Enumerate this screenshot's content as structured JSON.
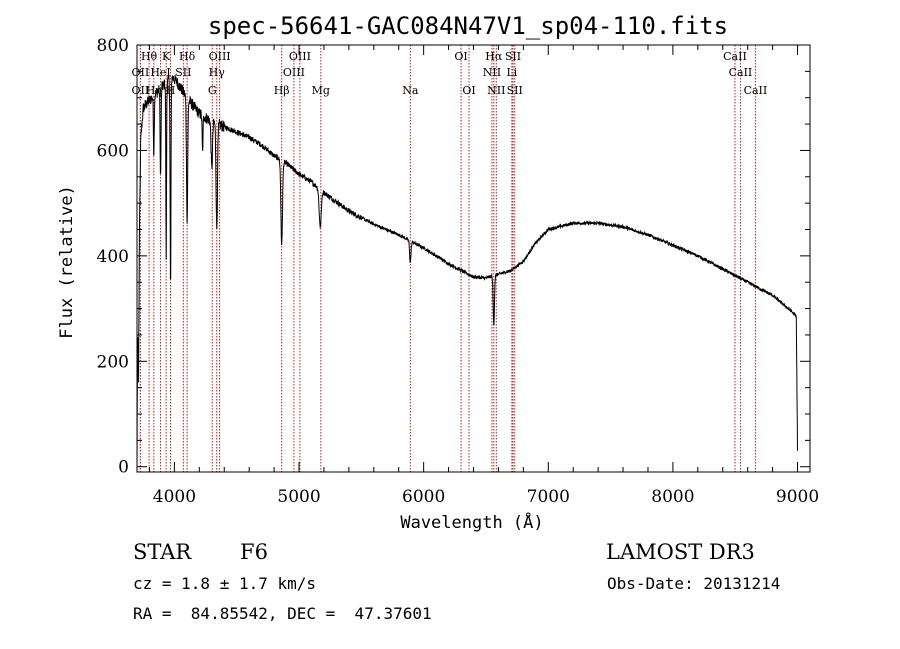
{
  "chart_data": {
    "type": "line",
    "title": "spec-56641-GAC084N47V1_sp04-110.fits",
    "xlabel": "Wavelength (Å)",
    "ylabel": "Flux (relative)",
    "xlim": [
      3700,
      9100
    ],
    "ylim": [
      -10,
      800
    ],
    "x_ticks": [
      4000,
      5000,
      6000,
      7000,
      8000,
      9000
    ],
    "y_ticks": [
      0,
      200,
      400,
      600,
      800
    ],
    "grid": false,
    "line_color": "#000000",
    "marker_color": "#b22222",
    "continuum": [
      [
        3700,
        0
      ],
      [
        3705,
        260
      ],
      [
        3712,
        160
      ],
      [
        3720,
        450
      ],
      [
        3730,
        620
      ],
      [
        3750,
        680
      ],
      [
        3780,
        690
      ],
      [
        3820,
        700
      ],
      [
        3860,
        710
      ],
      [
        3900,
        720
      ],
      [
        3940,
        730
      ],
      [
        3980,
        740
      ],
      [
        4020,
        730
      ],
      [
        4100,
        700
      ],
      [
        4200,
        670
      ],
      [
        4300,
        655
      ],
      [
        4400,
        645
      ],
      [
        4500,
        635
      ],
      [
        4600,
        625
      ],
      [
        4700,
        610
      ],
      [
        4800,
        590
      ],
      [
        4900,
        575
      ],
      [
        5000,
        555
      ],
      [
        5100,
        540
      ],
      [
        5200,
        520
      ],
      [
        5400,
        485
      ],
      [
        5600,
        460
      ],
      [
        5800,
        440
      ],
      [
        6000,
        415
      ],
      [
        6200,
        385
      ],
      [
        6400,
        360
      ],
      [
        6500,
        358
      ],
      [
        6600,
        365
      ],
      [
        6700,
        372
      ],
      [
        6800,
        390
      ],
      [
        6900,
        425
      ],
      [
        7000,
        450
      ],
      [
        7200,
        462
      ],
      [
        7400,
        462
      ],
      [
        7600,
        455
      ],
      [
        7800,
        440
      ],
      [
        8000,
        420
      ],
      [
        8200,
        400
      ],
      [
        8400,
        375
      ],
      [
        8600,
        350
      ],
      [
        8800,
        325
      ],
      [
        8950,
        295
      ],
      [
        8990,
        285
      ],
      [
        9000,
        30
      ]
    ],
    "absorption_features": [
      {
        "center": 3835,
        "depth": 110,
        "width": 5
      },
      {
        "center": 3889,
        "depth": 170,
        "width": 5
      },
      {
        "center": 3934,
        "depth": 330,
        "width": 4
      },
      {
        "center": 3969,
        "depth": 400,
        "width": 5
      },
      {
        "center": 4102,
        "depth": 230,
        "width": 7
      },
      {
        "center": 4226,
        "depth": 70,
        "width": 5
      },
      {
        "center": 4300,
        "depth": 90,
        "width": 8
      },
      {
        "center": 4340,
        "depth": 200,
        "width": 8
      },
      {
        "center": 4861,
        "depth": 160,
        "width": 9
      },
      {
        "center": 5170,
        "depth": 70,
        "width": 12
      },
      {
        "center": 5893,
        "depth": 40,
        "width": 8
      },
      {
        "center": 6563,
        "depth": 95,
        "width": 7
      }
    ],
    "line_markers": {
      "row1": [
        {
          "label": "Hθ",
          "wavelength": 3797
        },
        {
          "label": "K",
          "wavelength": 3934
        },
        {
          "label": "Hδ",
          "wavelength": 4102
        },
        {
          "label": "OIII",
          "wavelength": 4363
        },
        {
          "label": "OIII",
          "wavelength": 5007
        },
        {
          "label": "OI",
          "wavelength": 6300
        },
        {
          "label": "Hα",
          "wavelength": 6563
        },
        {
          "label": "SII",
          "wavelength": 6717
        },
        {
          "label": "CaII",
          "wavelength": 8498
        }
      ],
      "row2": [
        {
          "label": "OII",
          "wavelength": 3727
        },
        {
          "label": "HeI",
          "wavelength": 3889
        },
        {
          "label": "SII",
          "wavelength": 4072
        },
        {
          "label": "Hγ",
          "wavelength": 4340
        },
        {
          "label": "OIII",
          "wavelength": 4959
        },
        {
          "label": "NII",
          "wavelength": 6548
        },
        {
          "label": "Li",
          "wavelength": 6708
        },
        {
          "label": "CaII",
          "wavelength": 8542
        }
      ],
      "row3": [
        {
          "label": "OII",
          "wavelength": 3727
        },
        {
          "label": "Hη",
          "wavelength": 3835
        },
        {
          "label": "H",
          "wavelength": 3969
        },
        {
          "label": "G",
          "wavelength": 4304
        },
        {
          "label": "Hβ",
          "wavelength": 4861
        },
        {
          "label": "Mg",
          "wavelength": 5175
        },
        {
          "label": "Na",
          "wavelength": 5893
        },
        {
          "label": "OI",
          "wavelength": 6364
        },
        {
          "label": "NII",
          "wavelength": 6583
        },
        {
          "label": "SII",
          "wavelength": 6731
        },
        {
          "label": "CaII",
          "wavelength": 8662
        }
      ]
    }
  },
  "info": {
    "object_class": "STAR",
    "subclass": "F6",
    "survey": "LAMOST DR3",
    "redshift": "cz = 1.8 ± 1.7 km/s",
    "obs_date": "Obs-Date: 20131214",
    "coords": "RA =  84.85542, DEC =  47.37601"
  }
}
